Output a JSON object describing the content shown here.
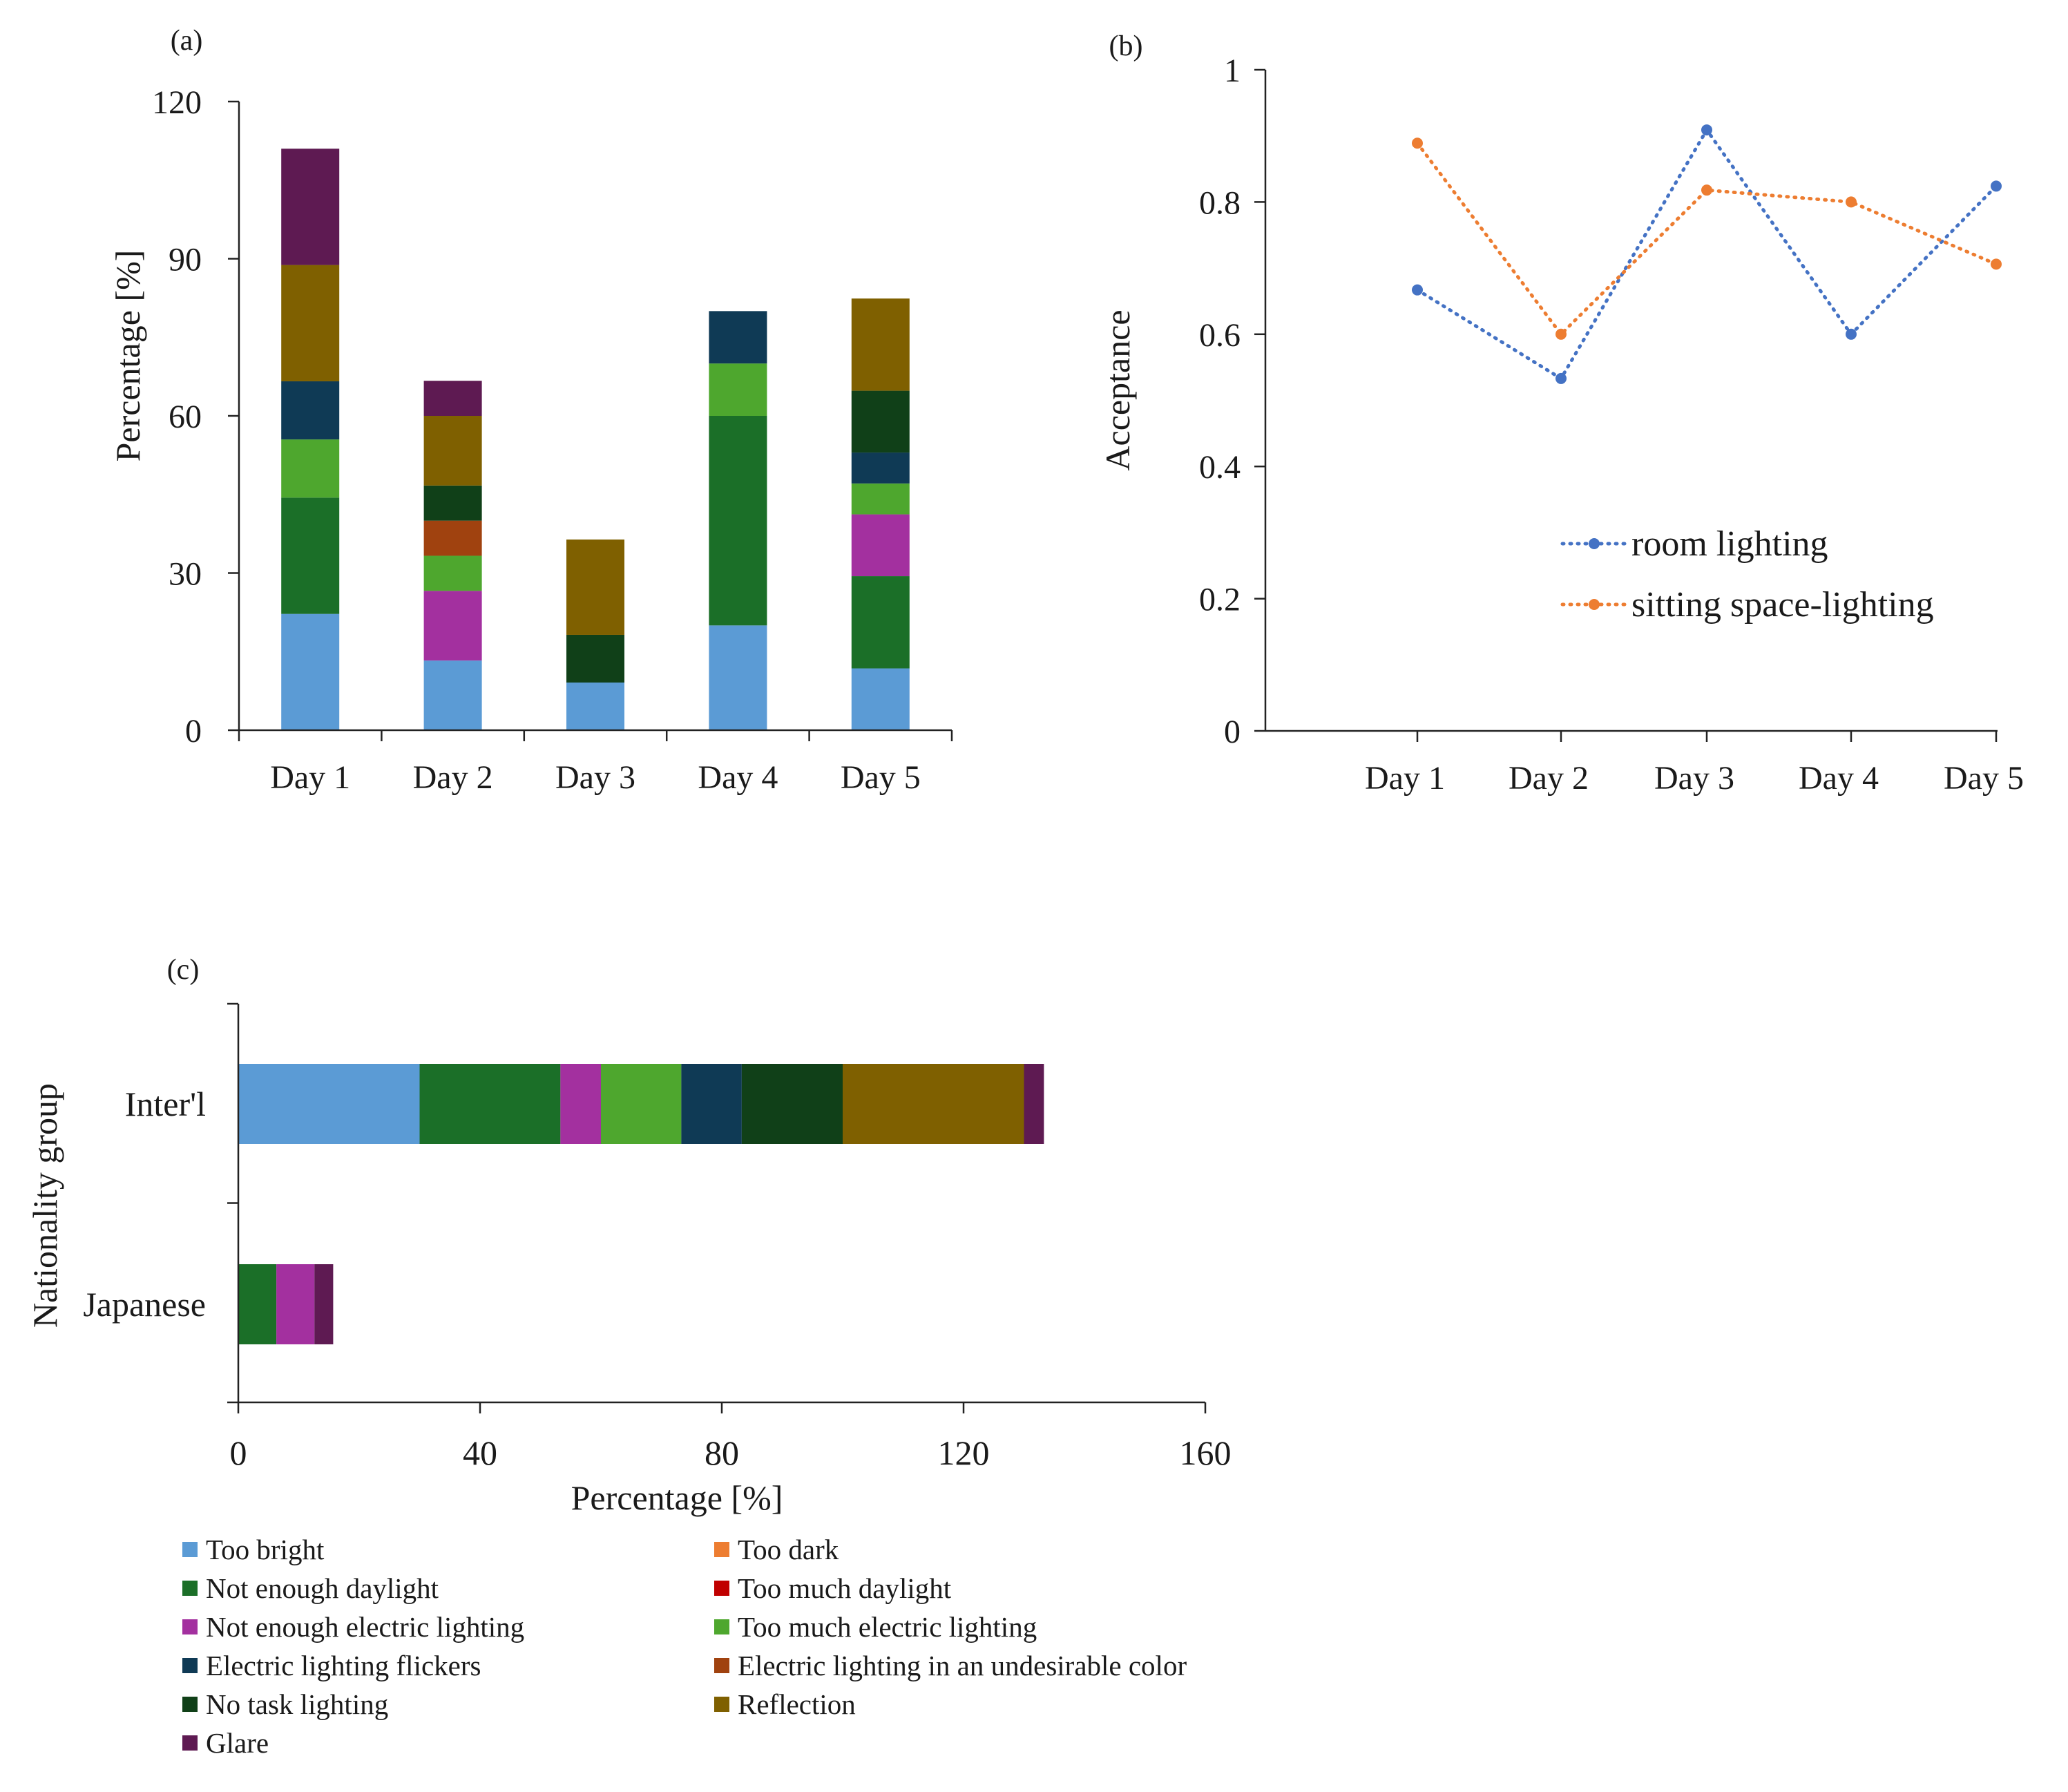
{
  "chart_data": [
    {
      "panel_label": "(a)",
      "type": "bar",
      "stacked": true,
      "ylabel": "Percentage [%]",
      "ylim": [
        0,
        120
      ],
      "yticks": [
        0,
        30,
        60,
        90,
        120
      ],
      "categories": [
        "Day 1",
        "Day 2",
        "Day 3",
        "Day 4",
        "Day 5"
      ],
      "series": [
        {
          "name": "Too bright",
          "values": [
            22.2,
            13.3,
            9.1,
            20.0,
            11.8
          ]
        },
        {
          "name": "Too dark",
          "values": [
            0,
            0,
            0,
            0,
            0
          ]
        },
        {
          "name": "Not enough daylight",
          "values": [
            22.2,
            0,
            0,
            40.0,
            17.6
          ]
        },
        {
          "name": "Too much daylight",
          "values": [
            0,
            0,
            0,
            0,
            0
          ]
        },
        {
          "name": "Not enough electric lighting",
          "values": [
            0,
            13.3,
            0,
            0,
            11.8
          ]
        },
        {
          "name": "Too much electric lighting",
          "values": [
            11.1,
            6.7,
            0,
            10.0,
            5.9
          ]
        },
        {
          "name": "Electric lighting flickers",
          "values": [
            11.1,
            0,
            0,
            10.0,
            5.9
          ]
        },
        {
          "name": "Electric lighting in an undesirable color",
          "values": [
            0,
            6.7,
            0,
            0,
            0
          ]
        },
        {
          "name": "No task lighting",
          "values": [
            0,
            6.7,
            9.1,
            0,
            11.8
          ]
        },
        {
          "name": "Reflection",
          "values": [
            22.2,
            13.3,
            18.2,
            0,
            17.6
          ]
        },
        {
          "name": "Glare",
          "values": [
            22.2,
            6.7,
            0,
            0,
            0
          ]
        }
      ]
    },
    {
      "panel_label": "(b)",
      "type": "line",
      "ylabel": "Acceptance",
      "ylim": [
        0,
        1
      ],
      "yticks": [
        "0",
        "0.2",
        "0.4",
        "0.6",
        "0.8",
        "1"
      ],
      "categories": [
        "Day 1",
        "Day 2",
        "Day 3",
        "Day 4",
        "Day 5"
      ],
      "series": [
        {
          "name": "room lighting",
          "values": [
            0.667,
            0.533,
            0.909,
            0.6,
            0.824
          ]
        },
        {
          "name": "sitting space-lighting",
          "values": [
            0.889,
            0.6,
            0.818,
            0.8,
            0.706
          ]
        }
      ],
      "legend_position": "center-right"
    },
    {
      "panel_label": "(c)",
      "type": "bar",
      "orientation": "horizontal",
      "stacked": true,
      "xlabel": "Percentage [%]",
      "ylabel": "Nationality group",
      "xlim": [
        0,
        160
      ],
      "xticks": [
        0,
        40,
        80,
        120,
        160
      ],
      "categories": [
        "Inter'l",
        "Japanese"
      ],
      "series": [
        {
          "name": "Too bright",
          "values": [
            30.0,
            0
          ]
        },
        {
          "name": "Too dark",
          "values": [
            0,
            0
          ]
        },
        {
          "name": "Not enough daylight",
          "values": [
            23.3,
            6.3
          ]
        },
        {
          "name": "Too much daylight",
          "values": [
            0,
            0
          ]
        },
        {
          "name": "Not enough electric lighting",
          "values": [
            6.7,
            6.3
          ]
        },
        {
          "name": "Too much electric lighting",
          "values": [
            13.3,
            0
          ]
        },
        {
          "name": "Electric lighting flickers",
          "values": [
            10.0,
            0
          ]
        },
        {
          "name": "Electric lighting in an undesirable color",
          "values": [
            0,
            0
          ]
        },
        {
          "name": "No task lighting",
          "values": [
            16.7,
            0
          ]
        },
        {
          "name": "Reflection",
          "values": [
            30.0,
            0
          ]
        },
        {
          "name": "Glare",
          "values": [
            3.3,
            3.1
          ]
        }
      ]
    }
  ],
  "legend": [
    {
      "label": "Too bright",
      "color": "#5b9bd5"
    },
    {
      "label": "Too dark",
      "color": "#ed7d31"
    },
    {
      "label": "Not enough daylight",
      "color": "#1b6f28"
    },
    {
      "label": "Too much daylight",
      "color": "#c00000"
    },
    {
      "label": "Not enough electric lighting",
      "color": "#a3309f"
    },
    {
      "label": "Too much electric lighting",
      "color": "#4ea72e"
    },
    {
      "label": "Electric lighting flickers",
      "color": "#0f3a55"
    },
    {
      "label": "Electric lighting in an undesirable color",
      "color": "#a0420f"
    },
    {
      "label": "No task lighting",
      "color": "#104018"
    },
    {
      "label": "Reflection",
      "color": "#7f6000"
    },
    {
      "label": "Glare",
      "color": "#5e1a52"
    }
  ],
  "line_colors": {
    "room lighting": "#4472c4",
    "sitting space-lighting": "#ed7d31"
  }
}
